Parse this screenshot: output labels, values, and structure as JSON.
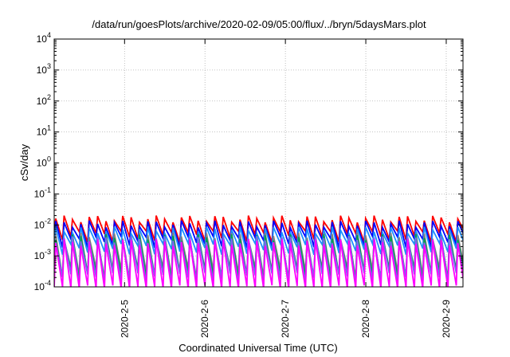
{
  "chart_data": {
    "type": "line",
    "title": "/data/run/goesPlots/archive/2020-02-09/05:00/flux/../bryn/5daysMars.plot",
    "xlabel": "Coordinated Universal Time (UTC)",
    "ylabel": "cSv/day",
    "yscale": "log",
    "ylim": [
      0.0001,
      10000
    ],
    "y_ticks": [
      {
        "base": "10",
        "exp": "-4"
      },
      {
        "base": "10",
        "exp": "-3"
      },
      {
        "base": "10",
        "exp": "-2"
      },
      {
        "base": "10",
        "exp": "-1"
      },
      {
        "base": "10",
        "exp": "0"
      },
      {
        "base": "10",
        "exp": "1"
      },
      {
        "base": "10",
        "exp": "2"
      },
      {
        "base": "10",
        "exp": "3"
      },
      {
        "base": "10",
        "exp": "4"
      }
    ],
    "xlim": [
      "2020-02-04 03:00",
      "2020-02-09 05:00"
    ],
    "x_ticks": [
      "2020-2-5",
      "2020-2-6",
      "2020-2-7",
      "2020-2-8",
      "2020-2-9"
    ],
    "x_tick_dates": [
      "2020-02-05",
      "2020-02-06",
      "2020-02-07",
      "2020-02-08",
      "2020-02-09"
    ],
    "grid": true,
    "legend": "none",
    "sawtooth_period_hours": 2.5,
    "series": [
      {
        "color": "#ff0000",
        "peak": 0.016,
        "trough": 0.0045
      },
      {
        "color": "#0000ff",
        "peak": 0.011,
        "trough": 0.003
      },
      {
        "color": "#1e90ff",
        "peak": 0.007,
        "trough": 0.0018
      },
      {
        "color": "#808080",
        "peak": 0.0045,
        "trough": 0.0003
      },
      {
        "color": "#00a050",
        "peak": 0.004,
        "trough": 0.00025
      },
      {
        "color": "#7b68ee",
        "peak": 0.0035,
        "trough": 0.0002
      },
      {
        "color": "#ff00ff",
        "peak": 0.0028,
        "trough": 8e-05
      }
    ]
  }
}
